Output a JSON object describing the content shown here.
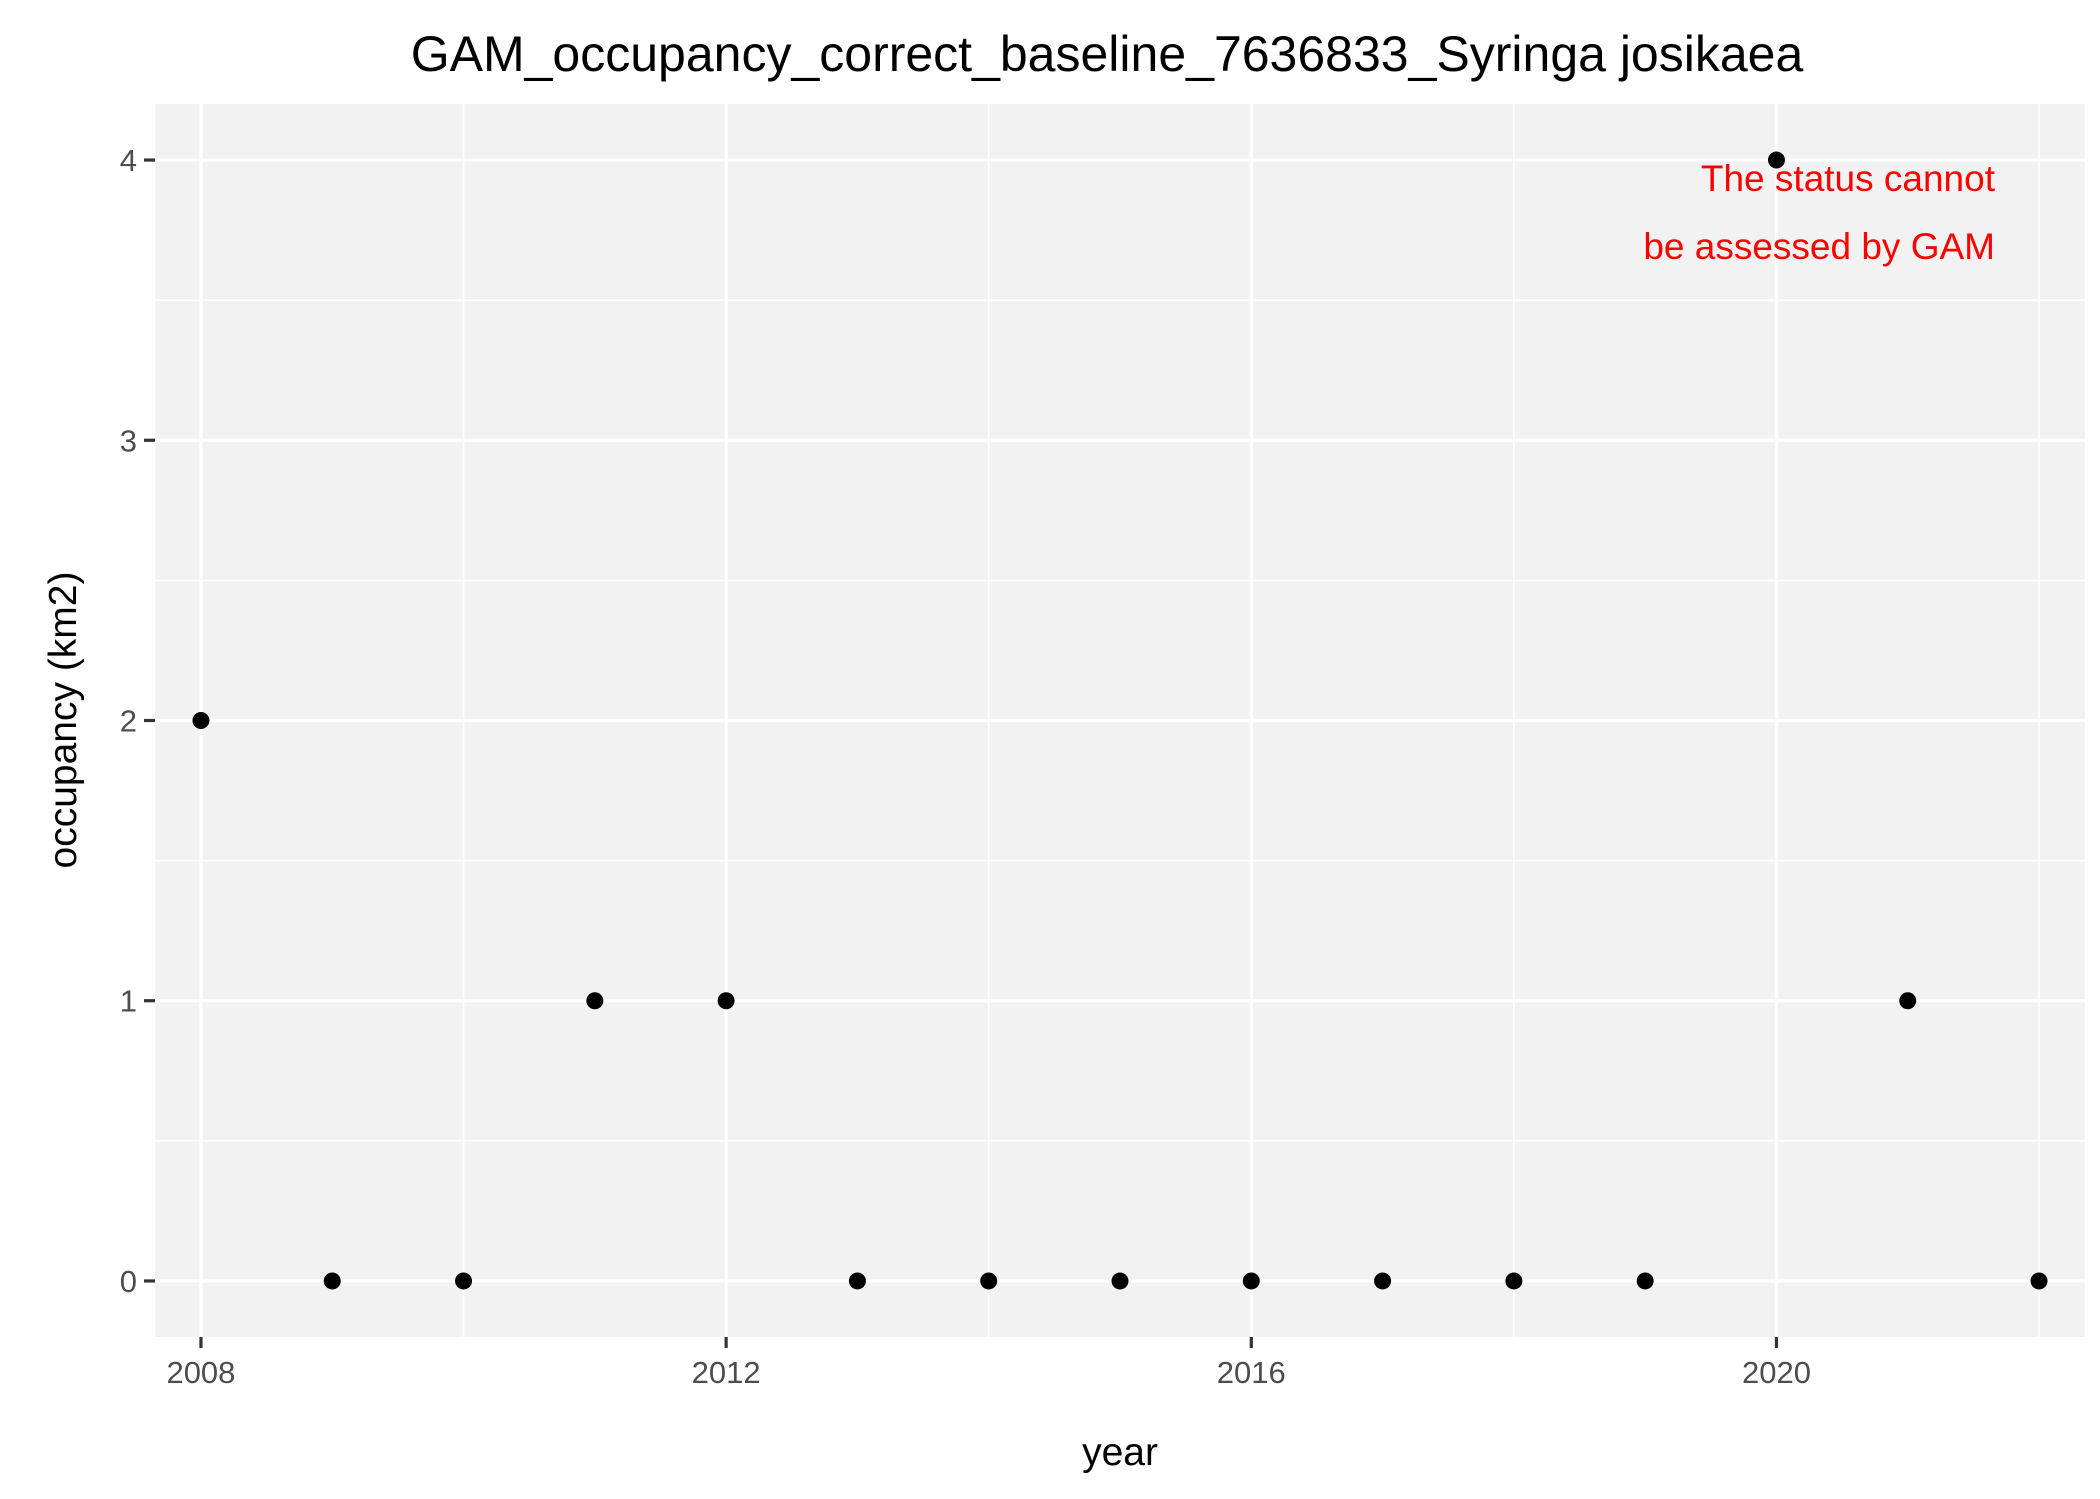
{
  "chart_data": {
    "type": "scatter",
    "title": "GAM_occupancy_correct_baseline_7636833_Syringa josikaea",
    "xlabel": "year",
    "ylabel": "occupancy (km2)",
    "xlim": [
      2007.65,
      2022.35
    ],
    "ylim": [
      -0.2,
      4.2
    ],
    "x_ticks": [
      2008,
      2012,
      2016,
      2020
    ],
    "y_ticks": [
      0,
      1,
      2,
      3,
      4
    ],
    "x_tick_labels": [
      "2008",
      "2012",
      "2016",
      "2020"
    ],
    "y_tick_labels": [
      "0",
      "1",
      "2",
      "3",
      "4"
    ],
    "x_minor": [
      2010,
      2014,
      2018,
      2022
    ],
    "y_minor": [
      0.5,
      1.5,
      2.5,
      3.5
    ],
    "grid": true,
    "legend": "none",
    "series": [
      {
        "x": [
          2008,
          2009,
          2010,
          2011,
          2012,
          2013,
          2014,
          2015,
          2016,
          2017,
          2018,
          2019,
          2020,
          2021,
          2022
        ],
        "y": [
          2,
          0,
          0,
          1,
          1,
          0,
          0,
          0,
          0,
          0,
          0,
          0,
          4,
          1,
          0
        ],
        "color": "#000000"
      }
    ],
    "annotation": {
      "lines": [
        "The status cannot",
        "be assessed by GAM"
      ],
      "color": "#ff0000",
      "anchor": "top-right"
    }
  },
  "colors": {
    "panel_background": "#f2f2f2",
    "grid": "#ffffff",
    "tick_text": "#4d4d4d",
    "point": "#000000",
    "annotation": "#ff0000"
  }
}
